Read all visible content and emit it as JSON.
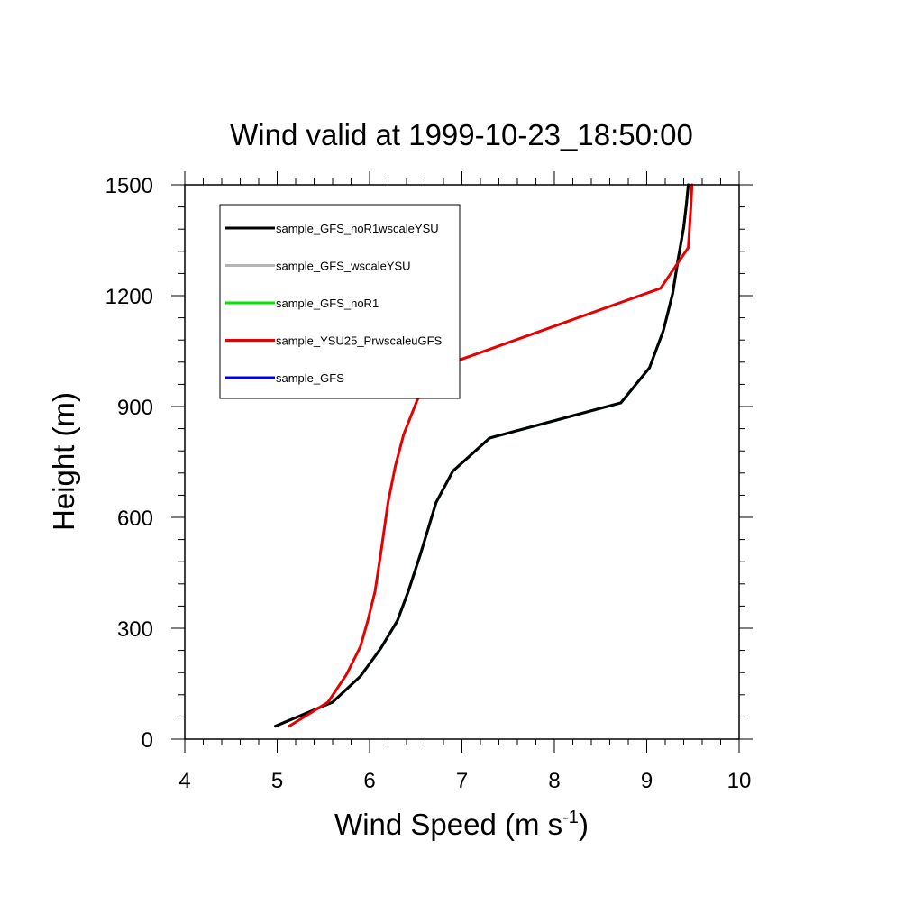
{
  "colors": {
    "sample_GFS_noR1wscaleYSU": "#000000",
    "sample_GFS_wscaleYSU": "#b4b4b4",
    "sample_GFS_noR1": "#00e600",
    "sample_YSU25_PrwscaleuGFS": "#e60000",
    "sample_GFS": "#0000e6"
  },
  "chart_data": {
    "type": "line",
    "title": "Wind valid at 1999-10-23_18:50:00",
    "xlabel": "Wind Speed (m s",
    "xlabel_sup": "-1",
    "xlabel_end": ")",
    "ylabel": "Height (m)",
    "xlim": [
      4,
      10
    ],
    "ylim": [
      0,
      1500
    ],
    "xticks": [
      "4",
      "5",
      "6",
      "7",
      "8",
      "9",
      "10"
    ],
    "yticks": [
      "0",
      "300",
      "600",
      "900",
      "1200",
      "1500"
    ],
    "legend_position": "top-left",
    "series": [
      {
        "name": "sample_GFS_noR1wscaleYSU",
        "x": [
          4.98,
          5.6,
          5.9,
          6.12,
          6.3,
          6.42,
          6.55,
          6.72,
          6.9,
          7.3,
          8.72,
          9.03,
          9.18,
          9.28,
          9.34,
          9.4,
          9.43,
          9.45
        ],
        "y": [
          35,
          100,
          170,
          245,
          320,
          400,
          500,
          640,
          725,
          815,
          910,
          1005,
          1105,
          1205,
          1300,
          1385,
          1450,
          1500
        ]
      },
      {
        "name": "sample_GFS_wscaleYSU",
        "x": [
          4.98,
          5.6,
          5.9,
          6.12,
          6.3,
          6.42,
          6.55,
          6.72,
          6.9,
          7.3,
          8.72,
          9.03,
          9.18,
          9.28,
          9.34,
          9.4,
          9.43,
          9.45
        ],
        "y": [
          35,
          100,
          170,
          245,
          320,
          400,
          500,
          640,
          725,
          815,
          910,
          1005,
          1105,
          1205,
          1300,
          1385,
          1450,
          1500
        ]
      },
      {
        "name": "sample_GFS_noR1",
        "x": [
          4.98,
          5.6,
          5.9,
          6.12,
          6.3,
          6.42,
          6.55,
          6.72,
          6.9,
          7.3,
          8.72,
          9.03,
          9.18,
          9.28,
          9.34,
          9.4,
          9.43,
          9.45
        ],
        "y": [
          35,
          100,
          170,
          245,
          320,
          400,
          500,
          640,
          725,
          815,
          910,
          1005,
          1105,
          1205,
          1300,
          1385,
          1450,
          1500
        ]
      },
      {
        "name": "sample_YSU25_PrwscaleuGFS",
        "x": [
          5.13,
          5.55,
          5.75,
          5.9,
          5.98,
          6.06,
          6.12,
          6.2,
          6.28,
          6.37,
          6.52,
          6.85,
          9.15,
          9.45,
          9.48,
          9.49
        ],
        "y": [
          35,
          100,
          175,
          250,
          320,
          400,
          500,
          640,
          740,
          825,
          920,
          1015,
          1220,
          1330,
          1450,
          1500
        ]
      },
      {
        "name": "sample_GFS",
        "x": [
          4.98,
          5.6,
          5.9,
          6.12,
          6.3,
          6.42,
          6.55,
          6.72,
          6.9,
          7.3,
          8.72,
          9.03,
          9.18,
          9.28,
          9.34,
          9.4,
          9.43,
          9.45
        ],
        "y": [
          35,
          100,
          170,
          245,
          320,
          400,
          500,
          640,
          725,
          815,
          910,
          1005,
          1105,
          1205,
          1300,
          1385,
          1450,
          1500
        ]
      }
    ],
    "draw_order": [
      4,
      2,
      1,
      0,
      3
    ]
  }
}
